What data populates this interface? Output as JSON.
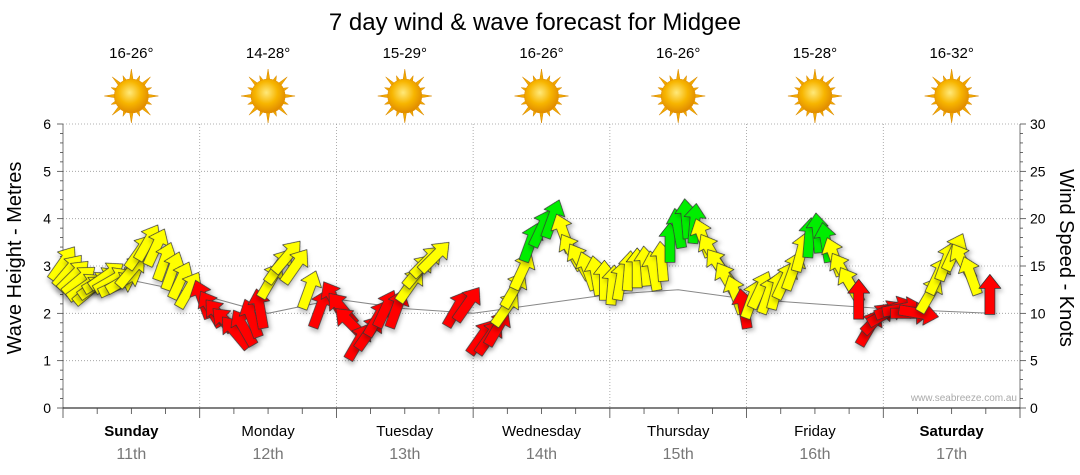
{
  "chart_data": {
    "type": "line",
    "title": "7 day wind & wave forecast for Midgee",
    "ylabel_left": "Wave Height - Metres",
    "ylabel_right": "Wind Speed - Knots",
    "ylim_left": [
      0,
      6
    ],
    "ylim_right": [
      0,
      30
    ],
    "yticks_left": [
      "0",
      "1",
      "2",
      "3",
      "4",
      "5",
      "6"
    ],
    "yticks_right": [
      "0",
      "5",
      "10",
      "15",
      "20",
      "25",
      "30"
    ],
    "credit": "www.seabreeze.com.au",
    "colors": {
      "light": "#ffff00",
      "moderate": "#ff0000",
      "strong": "#00ee00",
      "grid": "#999999",
      "wave_line": "#888888"
    },
    "days": [
      {
        "name": "Sunday",
        "date": "11th",
        "temp": "16-26°",
        "bold": true
      },
      {
        "name": "Monday",
        "date": "12th",
        "temp": "14-28°",
        "bold": false
      },
      {
        "name": "Tuesday",
        "date": "13th",
        "temp": "15-29°",
        "bold": false
      },
      {
        "name": "Wednesday",
        "date": "14th",
        "temp": "16-26°",
        "bold": false
      },
      {
        "name": "Thursday",
        "date": "15th",
        "temp": "16-26°",
        "bold": false
      },
      {
        "name": "Friday",
        "date": "16th",
        "temp": "15-28°",
        "bold": false
      },
      {
        "name": "Saturday",
        "date": "17th",
        "temp": "16-32°",
        "bold": true
      }
    ],
    "wind_series": [
      {
        "day": 0.0,
        "knots": 15.3,
        "dir": 35,
        "level": "light"
      },
      {
        "day": 0.04,
        "knots": 14.5,
        "dir": 40,
        "level": "light"
      },
      {
        "day": 0.08,
        "knots": 14.0,
        "dir": 45,
        "level": "light"
      },
      {
        "day": 0.12,
        "knots": 13.5,
        "dir": 50,
        "level": "light"
      },
      {
        "day": 0.16,
        "knots": 12.8,
        "dir": 55,
        "level": "light"
      },
      {
        "day": 0.2,
        "knots": 12.5,
        "dir": 50,
        "level": "light"
      },
      {
        "day": 0.24,
        "knots": 13.0,
        "dir": 55,
        "level": "light"
      },
      {
        "day": 0.28,
        "knots": 13.5,
        "dir": 60,
        "level": "light"
      },
      {
        "day": 0.32,
        "knots": 14.0,
        "dir": 55,
        "level": "light"
      },
      {
        "day": 0.36,
        "knots": 13.5,
        "dir": 60,
        "level": "light"
      },
      {
        "day": 0.4,
        "knots": 13.0,
        "dir": 65,
        "level": "light"
      },
      {
        "day": 0.45,
        "knots": 13.5,
        "dir": 60,
        "level": "light"
      },
      {
        "day": 0.5,
        "knots": 14.5,
        "dir": 40,
        "level": "light"
      },
      {
        "day": 0.56,
        "knots": 16.5,
        "dir": 35,
        "level": "light"
      },
      {
        "day": 0.62,
        "knots": 17.5,
        "dir": 30,
        "level": "light"
      },
      {
        "day": 0.68,
        "knots": 17.0,
        "dir": 25,
        "level": "light"
      },
      {
        "day": 0.74,
        "knots": 15.5,
        "dir": 20,
        "level": "light"
      },
      {
        "day": 0.8,
        "knots": 14.5,
        "dir": 20,
        "level": "light"
      },
      {
        "day": 0.86,
        "knots": 13.5,
        "dir": 25,
        "level": "light"
      },
      {
        "day": 0.92,
        "knots": 12.5,
        "dir": 30,
        "level": "light"
      },
      {
        "day": 1.02,
        "knots": 11.5,
        "dir": 340,
        "level": "moderate"
      },
      {
        "day": 1.08,
        "knots": 10.5,
        "dir": 330,
        "level": "moderate"
      },
      {
        "day": 1.14,
        "knots": 9.8,
        "dir": 320,
        "level": "moderate"
      },
      {
        "day": 1.2,
        "knots": 9.0,
        "dir": 315,
        "level": "moderate"
      },
      {
        "day": 1.26,
        "knots": 8.0,
        "dir": 320,
        "level": "moderate"
      },
      {
        "day": 1.32,
        "knots": 8.5,
        "dir": 330,
        "level": "moderate"
      },
      {
        "day": 1.38,
        "knots": 9.5,
        "dir": 340,
        "level": "moderate"
      },
      {
        "day": 1.44,
        "knots": 10.5,
        "dir": 350,
        "level": "moderate"
      },
      {
        "day": 1.52,
        "knots": 13.5,
        "dir": 30,
        "level": "light"
      },
      {
        "day": 1.58,
        "knots": 15.0,
        "dir": 35,
        "level": "light"
      },
      {
        "day": 1.64,
        "knots": 16.0,
        "dir": 40,
        "level": "light"
      },
      {
        "day": 1.7,
        "knots": 15.0,
        "dir": 35,
        "level": "light"
      },
      {
        "day": 1.8,
        "knots": 12.5,
        "dir": 20,
        "level": "light"
      },
      {
        "day": 1.88,
        "knots": 10.5,
        "dir": 20,
        "level": "moderate"
      },
      {
        "day": 1.98,
        "knots": 11.5,
        "dir": 330,
        "level": "moderate"
      },
      {
        "day": 2.04,
        "knots": 10.5,
        "dir": 320,
        "level": "moderate"
      },
      {
        "day": 2.1,
        "knots": 9.0,
        "dir": 315,
        "level": "moderate"
      },
      {
        "day": 2.16,
        "knots": 7.0,
        "dir": 30,
        "level": "moderate"
      },
      {
        "day": 2.24,
        "knots": 8.0,
        "dir": 35,
        "level": "moderate"
      },
      {
        "day": 2.3,
        "knots": 9.5,
        "dir": 30,
        "level": "moderate"
      },
      {
        "day": 2.36,
        "knots": 10.5,
        "dir": 25,
        "level": "moderate"
      },
      {
        "day": 2.44,
        "knots": 10.5,
        "dir": 20,
        "level": "moderate"
      },
      {
        "day": 2.54,
        "knots": 13.0,
        "dir": 35,
        "level": "light"
      },
      {
        "day": 2.6,
        "knots": 14.5,
        "dir": 40,
        "level": "light"
      },
      {
        "day": 2.66,
        "knots": 15.5,
        "dir": 45,
        "level": "light"
      },
      {
        "day": 2.72,
        "knots": 16.0,
        "dir": 45,
        "level": "light"
      },
      {
        "day": 2.88,
        "knots": 10.5,
        "dir": 30,
        "level": "moderate"
      },
      {
        "day": 2.96,
        "knots": 11.0,
        "dir": 35,
        "level": "moderate"
      },
      {
        "day": 3.06,
        "knots": 7.5,
        "dir": 35,
        "level": "moderate"
      },
      {
        "day": 3.12,
        "knots": 7.5,
        "dir": 35,
        "level": "moderate"
      },
      {
        "day": 3.18,
        "knots": 8.5,
        "dir": 30,
        "level": "moderate"
      },
      {
        "day": 3.24,
        "knots": 10.5,
        "dir": 35,
        "level": "light"
      },
      {
        "day": 3.3,
        "knots": 12.5,
        "dir": 30,
        "level": "light"
      },
      {
        "day": 3.36,
        "knots": 14.5,
        "dir": 25,
        "level": "light"
      },
      {
        "day": 3.42,
        "knots": 17.5,
        "dir": 20,
        "level": "strong"
      },
      {
        "day": 3.5,
        "knots": 19.0,
        "dir": 25,
        "level": "strong"
      },
      {
        "day": 3.58,
        "knots": 20.0,
        "dir": 20,
        "level": "strong"
      },
      {
        "day": 3.66,
        "knots": 18.5,
        "dir": 340,
        "level": "light"
      },
      {
        "day": 3.72,
        "knots": 16.5,
        "dir": 330,
        "level": "light"
      },
      {
        "day": 3.78,
        "knots": 15.5,
        "dir": 330,
        "level": "light"
      },
      {
        "day": 3.84,
        "knots": 14.5,
        "dir": 340,
        "level": "light"
      },
      {
        "day": 3.9,
        "knots": 14.0,
        "dir": 350,
        "level": "light"
      },
      {
        "day": 3.96,
        "knots": 13.5,
        "dir": 0,
        "level": "light"
      },
      {
        "day": 4.02,
        "knots": 13.0,
        "dir": 5,
        "level": "light"
      },
      {
        "day": 4.08,
        "knots": 13.5,
        "dir": 10,
        "level": "light"
      },
      {
        "day": 4.14,
        "knots": 14.5,
        "dir": 5,
        "level": "light"
      },
      {
        "day": 4.2,
        "knots": 14.8,
        "dir": 0,
        "level": "light"
      },
      {
        "day": 4.26,
        "knots": 15.0,
        "dir": 355,
        "level": "light"
      },
      {
        "day": 4.32,
        "knots": 14.5,
        "dir": 350,
        "level": "light"
      },
      {
        "day": 4.38,
        "knots": 15.5,
        "dir": 355,
        "level": "light"
      },
      {
        "day": 4.44,
        "knots": 17.5,
        "dir": 0,
        "level": "strong"
      },
      {
        "day": 4.5,
        "knots": 19.0,
        "dir": 350,
        "level": "strong"
      },
      {
        "day": 4.56,
        "knots": 20.0,
        "dir": 355,
        "level": "strong"
      },
      {
        "day": 4.62,
        "knots": 19.5,
        "dir": 5,
        "level": "strong"
      },
      {
        "day": 4.68,
        "knots": 18.0,
        "dir": 340,
        "level": "light"
      },
      {
        "day": 4.74,
        "knots": 16.5,
        "dir": 330,
        "level": "light"
      },
      {
        "day": 4.8,
        "knots": 15.0,
        "dir": 325,
        "level": "light"
      },
      {
        "day": 4.86,
        "knots": 13.5,
        "dir": 330,
        "level": "light"
      },
      {
        "day": 4.92,
        "knots": 12.0,
        "dir": 340,
        "level": "light"
      },
      {
        "day": 4.98,
        "knots": 10.5,
        "dir": 350,
        "level": "moderate"
      },
      {
        "day": 5.04,
        "knots": 11.5,
        "dir": 20,
        "level": "light"
      },
      {
        "day": 5.1,
        "knots": 12.5,
        "dir": 25,
        "level": "light"
      },
      {
        "day": 5.16,
        "knots": 12.0,
        "dir": 20,
        "level": "light"
      },
      {
        "day": 5.22,
        "knots": 12.5,
        "dir": 15,
        "level": "light"
      },
      {
        "day": 5.28,
        "knots": 13.5,
        "dir": 25,
        "level": "light"
      },
      {
        "day": 5.34,
        "knots": 14.5,
        "dir": 20,
        "level": "light"
      },
      {
        "day": 5.4,
        "knots": 16.5,
        "dir": 15,
        "level": "light"
      },
      {
        "day": 5.46,
        "knots": 18.0,
        "dir": 5,
        "level": "strong"
      },
      {
        "day": 5.52,
        "knots": 18.5,
        "dir": 355,
        "level": "strong"
      },
      {
        "day": 5.58,
        "knots": 17.5,
        "dir": 350,
        "level": "strong"
      },
      {
        "day": 5.64,
        "knots": 16.0,
        "dir": 340,
        "level": "light"
      },
      {
        "day": 5.7,
        "knots": 14.5,
        "dir": 330,
        "level": "light"
      },
      {
        "day": 5.76,
        "knots": 13.0,
        "dir": 330,
        "level": "light"
      },
      {
        "day": 5.82,
        "knots": 11.5,
        "dir": 0,
        "level": "moderate"
      },
      {
        "day": 5.9,
        "knots": 8.5,
        "dir": 30,
        "level": "moderate"
      },
      {
        "day": 5.96,
        "knots": 9.5,
        "dir": 45,
        "level": "moderate"
      },
      {
        "day": 6.02,
        "knots": 10.0,
        "dir": 60,
        "level": "moderate"
      },
      {
        "day": 6.08,
        "knots": 10.5,
        "dir": 70,
        "level": "moderate"
      },
      {
        "day": 6.14,
        "knots": 10.5,
        "dir": 80,
        "level": "moderate"
      },
      {
        "day": 6.2,
        "knots": 10.0,
        "dir": 90,
        "level": "moderate"
      },
      {
        "day": 6.26,
        "knots": 10.0,
        "dir": 100,
        "level": "moderate"
      },
      {
        "day": 6.34,
        "knots": 12.0,
        "dir": 30,
        "level": "light"
      },
      {
        "day": 6.4,
        "knots": 14.0,
        "dir": 25,
        "level": "light"
      },
      {
        "day": 6.46,
        "knots": 15.5,
        "dir": 20,
        "level": "light"
      },
      {
        "day": 6.52,
        "knots": 16.5,
        "dir": 25,
        "level": "light"
      },
      {
        "day": 6.58,
        "knots": 15.5,
        "dir": 330,
        "level": "light"
      },
      {
        "day": 6.64,
        "knots": 14.0,
        "dir": 340,
        "level": "light"
      },
      {
        "day": 6.78,
        "knots": 12.0,
        "dir": 0,
        "level": "moderate"
      }
    ],
    "wave_series": [
      {
        "day": 0.0,
        "m": 2.6
      },
      {
        "day": 0.5,
        "m": 2.7
      },
      {
        "day": 1.0,
        "m": 2.4
      },
      {
        "day": 1.5,
        "m": 2.0
      },
      {
        "day": 2.0,
        "m": 2.3
      },
      {
        "day": 2.5,
        "m": 2.1
      },
      {
        "day": 3.0,
        "m": 2.0
      },
      {
        "day": 3.5,
        "m": 2.2
      },
      {
        "day": 4.0,
        "m": 2.4
      },
      {
        "day": 4.5,
        "m": 2.5
      },
      {
        "day": 5.0,
        "m": 2.3
      },
      {
        "day": 5.5,
        "m": 2.2
      },
      {
        "day": 6.0,
        "m": 2.1
      },
      {
        "day": 6.78,
        "m": 2.0
      }
    ]
  }
}
